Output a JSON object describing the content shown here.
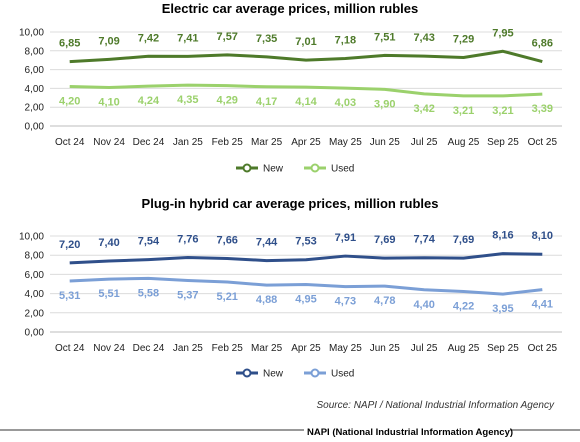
{
  "chart_data": [
    {
      "type": "line",
      "title": "Electric car average prices, million rubles",
      "categories": [
        "Oct 24",
        "Nov 24",
        "Dec 24",
        "Jan 25",
        "Feb 25",
        "Mar 25",
        "Apr 25",
        "May 25",
        "Jun 25",
        "Jul 25",
        "Aug 25",
        "Sep 25",
        "Oct 25"
      ],
      "series": [
        {
          "name": "New",
          "color": "#4e7a2a",
          "values": [
            6.85,
            7.09,
            7.42,
            7.41,
            7.57,
            7.35,
            7.01,
            7.18,
            7.51,
            7.43,
            7.29,
            7.95,
            6.86
          ],
          "labels": [
            "6,85",
            "7,09",
            "7,42",
            "7,41",
            "7,57",
            "7,35",
            "7,01",
            "7,18",
            "7,51",
            "7,43",
            "7,29",
            "7,95",
            "6,86"
          ]
        },
        {
          "name": "Used",
          "color": "#9bd16c",
          "values": [
            4.2,
            4.1,
            4.24,
            4.35,
            4.29,
            4.17,
            4.14,
            4.03,
            3.9,
            3.42,
            3.21,
            3.21,
            3.39
          ],
          "labels": [
            "4,20",
            "4,10",
            "4,24",
            "4,35",
            "4,29",
            "4,17",
            "4,14",
            "4,03",
            "3,90",
            "3,42",
            "3,21",
            "3,21",
            "3,39"
          ]
        }
      ],
      "yticks": [
        "0,00",
        "2,00",
        "4,00",
        "6,00",
        "8,00",
        "10,00"
      ],
      "ylim": [
        0,
        10
      ],
      "grid": true,
      "legend": "bottom"
    },
    {
      "type": "line",
      "title": "Plug-in hybrid car average prices, million rubles",
      "categories": [
        "Oct 24",
        "Nov 24",
        "Dec 24",
        "Jan 25",
        "Feb 25",
        "Mar 25",
        "Apr 25",
        "May 25",
        "Jun 25",
        "Jul 25",
        "Aug 25",
        "Sep 25",
        "Oct 25"
      ],
      "series": [
        {
          "name": "New",
          "color": "#2f4f8a",
          "values": [
            7.2,
            7.4,
            7.54,
            7.76,
            7.66,
            7.44,
            7.53,
            7.91,
            7.69,
            7.74,
            7.69,
            8.16,
            8.1
          ],
          "labels": [
            "7,20",
            "7,40",
            "7,54",
            "7,76",
            "7,66",
            "7,44",
            "7,53",
            "7,91",
            "7,69",
            "7,74",
            "7,69",
            "8,16",
            "8,10"
          ]
        },
        {
          "name": "Used",
          "color": "#7b9fd6",
          "values": [
            5.31,
            5.51,
            5.58,
            5.37,
            5.21,
            4.88,
            4.95,
            4.73,
            4.78,
            4.4,
            4.22,
            3.95,
            4.41
          ],
          "labels": [
            "5,31",
            "5,51",
            "5,58",
            "5,37",
            "5,21",
            "4,88",
            "4,95",
            "4,73",
            "4,78",
            "4,40",
            "4,22",
            "3,95",
            "4,41"
          ]
        }
      ],
      "yticks": [
        "0,00",
        "2,00",
        "4,00",
        "6,00",
        "8,00",
        "10,00"
      ],
      "ylim": [
        0,
        10
      ],
      "grid": true,
      "legend": "bottom"
    }
  ],
  "source": "Source: NAPI / National Industrial Information Agency",
  "footer": "NAPI (National Industrial Information Agency)"
}
